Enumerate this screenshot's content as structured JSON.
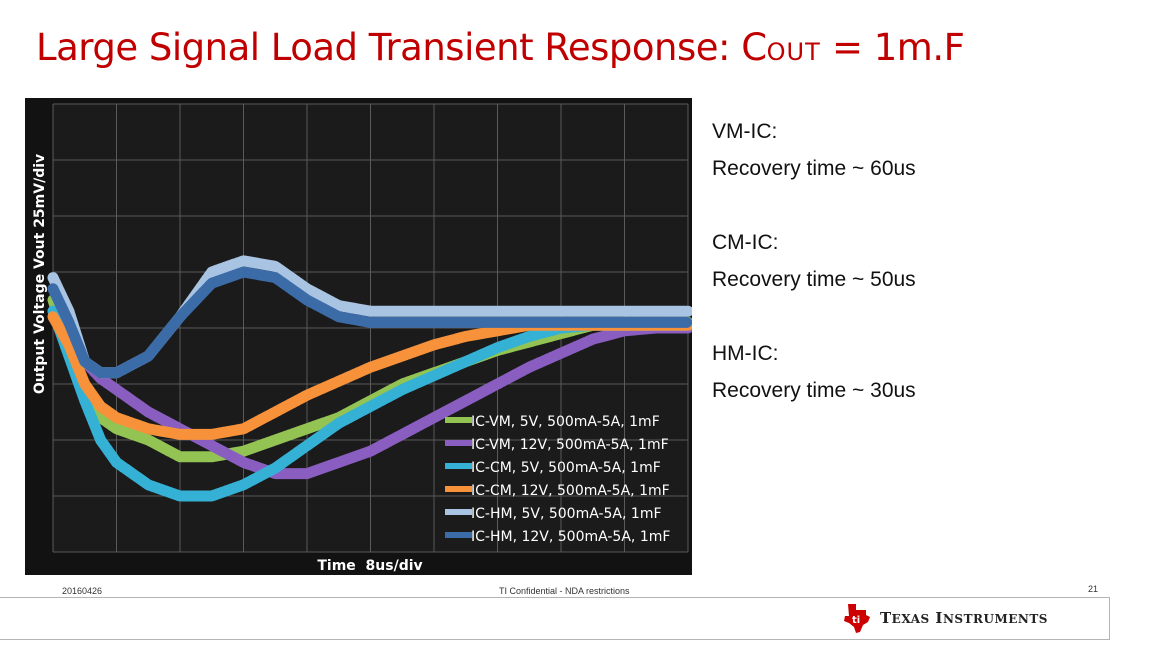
{
  "page": {
    "title_main": "Large Signal Load Transient Response: C",
    "title_sub": "OUT",
    "title_tail": " = 1m.F"
  },
  "notes": [
    {
      "name": "VM-IC:",
      "detail": "Recovery time ~ 60us"
    },
    {
      "name": "CM-IC:",
      "detail": "Recovery time ~ 50us"
    },
    {
      "name": "HM-IC:",
      "detail": "Recovery time ~ 30us"
    }
  ],
  "footer": {
    "date": "20160426",
    "confidential": "TI Confidential - NDA restrictions",
    "page_number": "21",
    "logo_text": "Texas Instruments"
  },
  "chart_data": {
    "type": "line",
    "title": "",
    "xlabel": "Time  8us/div",
    "ylabel": "Output Voltage  Vout  25mV/div",
    "x_unit": "div",
    "y_unit": "div",
    "xlim": [
      0,
      10
    ],
    "ylim": [
      -4,
      4
    ],
    "grid": true,
    "background": "#1b1b1b",
    "legend_position": "bottom-right",
    "x": [
      0,
      0.25,
      0.5,
      0.75,
      1,
      1.5,
      2,
      2.5,
      3,
      3.5,
      4,
      4.5,
      5,
      5.5,
      6,
      6.5,
      7,
      7.5,
      8,
      8.5,
      9,
      9.5,
      10
    ],
    "series": [
      {
        "name": "IC-VM, 5V, 500mA-5A, 1mF",
        "color": "#92c353",
        "values": [
          0.5,
          -0.4,
          -1.2,
          -1.6,
          -1.8,
          -2.0,
          -2.3,
          -2.3,
          -2.2,
          -2.0,
          -1.8,
          -1.6,
          -1.3,
          -1.0,
          -0.8,
          -0.6,
          -0.4,
          -0.25,
          -0.1,
          0.05,
          0.1,
          0.1,
          0.1
        ]
      },
      {
        "name": "IC-VM, 12V, 500mA-5A, 1mF",
        "color": "#8a5ec0",
        "values": [
          0.3,
          0.0,
          -0.6,
          -0.9,
          -1.1,
          -1.5,
          -1.8,
          -2.1,
          -2.4,
          -2.6,
          -2.6,
          -2.4,
          -2.2,
          -1.9,
          -1.6,
          -1.3,
          -1.0,
          -0.7,
          -0.45,
          -0.2,
          -0.05,
          0.0,
          0.0
        ]
      },
      {
        "name": "IC-CM, 5V, 500mA-5A, 1mF",
        "color": "#35b1d5",
        "values": [
          0.3,
          -0.5,
          -1.3,
          -2.0,
          -2.4,
          -2.8,
          -3.0,
          -3.0,
          -2.8,
          -2.5,
          -2.1,
          -1.7,
          -1.4,
          -1.1,
          -0.85,
          -0.6,
          -0.35,
          -0.15,
          0.0,
          0.05,
          0.05,
          0.05,
          0.05
        ]
      },
      {
        "name": "IC-CM, 12V, 500mA-5A, 1mF",
        "color": "#f7923a",
        "values": [
          0.2,
          -0.3,
          -1.0,
          -1.4,
          -1.6,
          -1.8,
          -1.9,
          -1.9,
          -1.8,
          -1.5,
          -1.2,
          -0.95,
          -0.7,
          -0.5,
          -0.3,
          -0.15,
          -0.05,
          0.05,
          0.05,
          0.05,
          0.05,
          0.05,
          0.05
        ]
      },
      {
        "name": "IC-HM, 5V, 500mA-5A, 1mF",
        "color": "#a9c4e3",
        "values": [
          0.9,
          0.3,
          -0.6,
          -0.8,
          -0.8,
          -0.5,
          0.2,
          1.0,
          1.2,
          1.1,
          0.7,
          0.4,
          0.3,
          0.3,
          0.3,
          0.3,
          0.3,
          0.3,
          0.3,
          0.3,
          0.3,
          0.3,
          0.3
        ]
      },
      {
        "name": "IC-HM, 12V, 500mA-5A, 1mF",
        "color": "#3c6ca8",
        "values": [
          0.7,
          0.1,
          -0.6,
          -0.8,
          -0.8,
          -0.5,
          0.2,
          0.8,
          1.0,
          0.9,
          0.5,
          0.2,
          0.1,
          0.1,
          0.1,
          0.1,
          0.1,
          0.1,
          0.1,
          0.1,
          0.1,
          0.1,
          0.1
        ]
      }
    ]
  }
}
